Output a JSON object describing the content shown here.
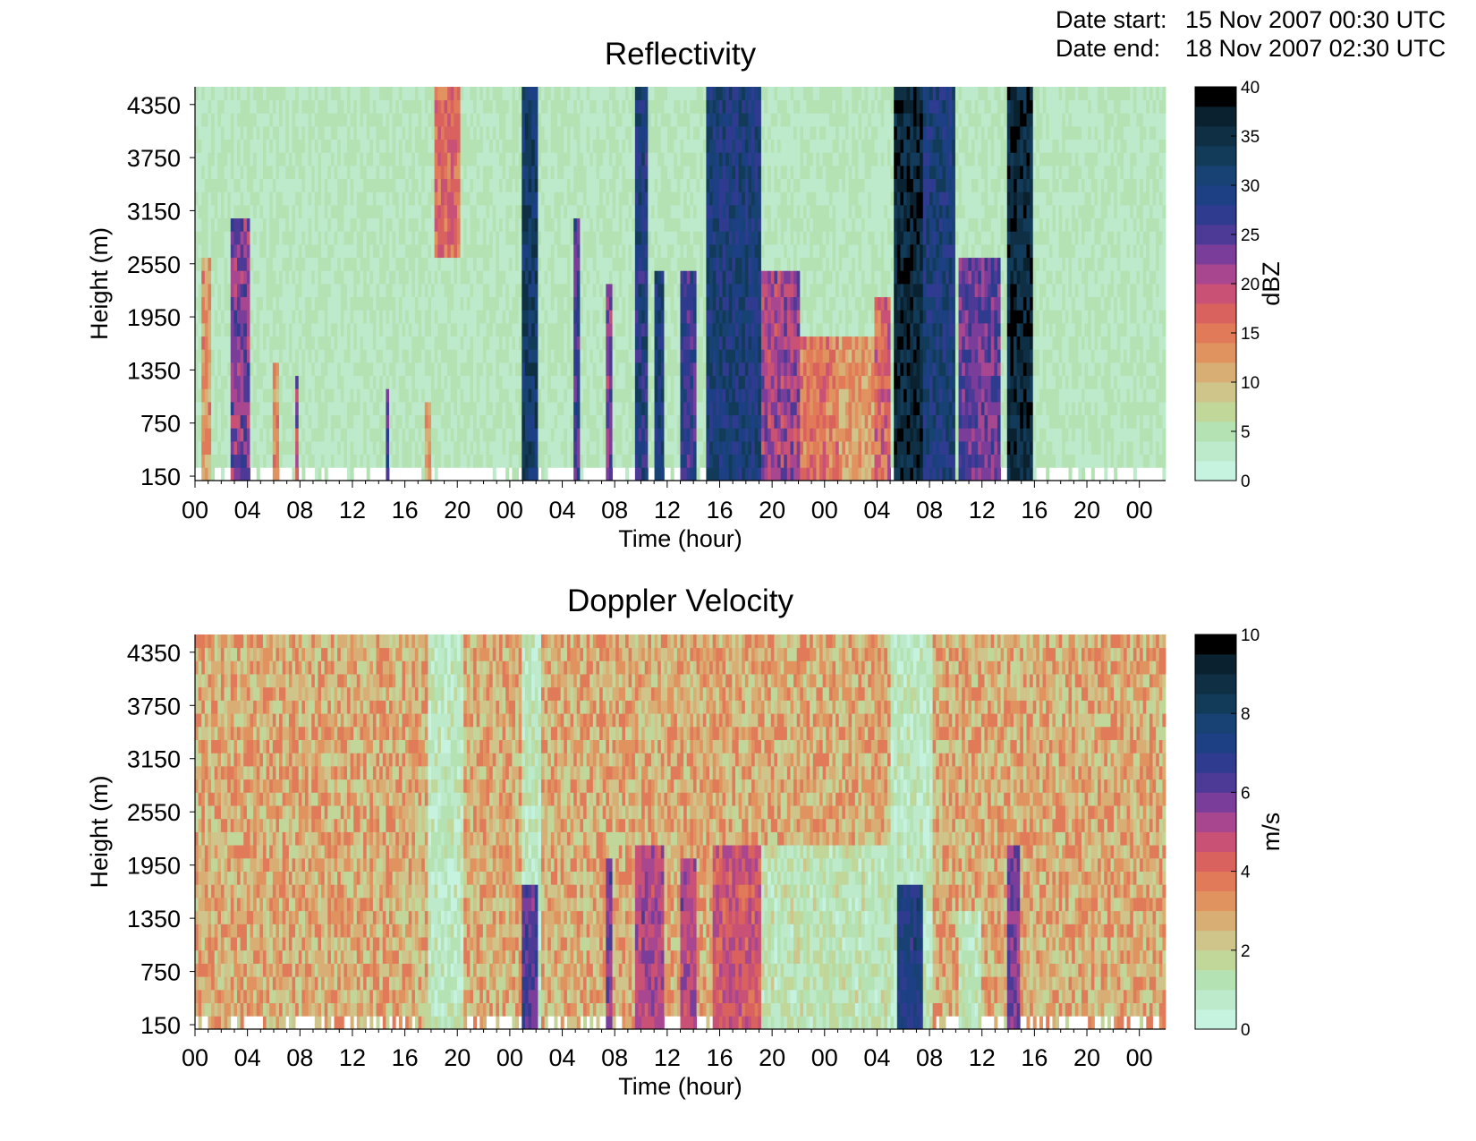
{
  "header": {
    "start_label": "Date start:",
    "start_value": "15 Nov 2007 00:30 UTC",
    "end_label": "Date end:",
    "end_value": "18 Nov 2007 02:30 UTC"
  },
  "palette": [
    "#ffffff",
    "#c6f2e0",
    "#bdeacb",
    "#b4e2b3",
    "#c1d79a",
    "#cfc48a",
    "#d9ae75",
    "#e0935f",
    "#e07a58",
    "#d9625f",
    "#c95176",
    "#a94690",
    "#7a3e9a",
    "#4d3a96",
    "#2e3b8f",
    "#1d3f84",
    "#174273",
    "#123b5a",
    "#0f2f44",
    "#0a2230",
    "#000000"
  ],
  "chart_data": [
    {
      "type": "heatmap",
      "title": "Reflectivity",
      "xlabel": "Time (hour)",
      "ylabel": "Height (m)",
      "colorbar_label": "dBZ",
      "x_tick_labels": [
        "00",
        "04",
        "08",
        "12",
        "16",
        "20",
        "00",
        "04",
        "08",
        "12",
        "16",
        "20",
        "00",
        "04",
        "08",
        "12",
        "16",
        "20",
        "00"
      ],
      "x_range_hours": [
        0,
        74
      ],
      "y_ticks": [
        150,
        750,
        1350,
        1950,
        2550,
        3150,
        3750,
        4350
      ],
      "y_range": [
        100,
        4550
      ],
      "colorbar_range": [
        0,
        40
      ],
      "colorbar_ticks": [
        0,
        5,
        10,
        15,
        20,
        25,
        30,
        35,
        40
      ],
      "background_level": 5,
      "events": [
        {
          "t0": 0.5,
          "t1": 1.2,
          "top": 2600,
          "level": 14
        },
        {
          "t0": 2.8,
          "t1": 4.3,
          "top": 3000,
          "level": 24
        },
        {
          "t0": 5.8,
          "t1": 6.4,
          "top": 1500,
          "level": 14
        },
        {
          "t0": 7.7,
          "t1": 8.0,
          "top": 1300,
          "level": 22
        },
        {
          "t0": 14.6,
          "t1": 14.8,
          "top": 1150,
          "level": 27
        },
        {
          "t0": 17.6,
          "t1": 18.0,
          "top": 1000,
          "level": 12
        },
        {
          "t0": 18.2,
          "t1": 20.2,
          "top": 4550,
          "bottom": 2600,
          "level": 17
        },
        {
          "t0": 25.0,
          "t1": 26.2,
          "top": 4550,
          "level": 33
        },
        {
          "t0": 28.8,
          "t1": 29.3,
          "top": 3100,
          "level": 27
        },
        {
          "t0": 31.3,
          "t1": 31.8,
          "top": 2300,
          "level": 24
        },
        {
          "t0": 33.6,
          "t1": 34.6,
          "top": 4550,
          "level": 30
        },
        {
          "t0": 35.0,
          "t1": 35.8,
          "top": 2500,
          "level": 31
        },
        {
          "t0": 37.0,
          "t1": 38.3,
          "top": 2500,
          "level": 28
        },
        {
          "t0": 39.0,
          "t1": 43.2,
          "top": 4550,
          "level": 31
        },
        {
          "t0": 43.2,
          "t1": 46.2,
          "top": 2400,
          "level": 22
        },
        {
          "t0": 46.2,
          "t1": 49.2,
          "top": 1800,
          "level": 16
        },
        {
          "t0": 49.2,
          "t1": 51.7,
          "top": 1800,
          "level": 13
        },
        {
          "t0": 51.7,
          "t1": 53.0,
          "top": 2200,
          "level": 18
        },
        {
          "t0": 53.2,
          "t1": 55.6,
          "top": 4550,
          "level": 37
        },
        {
          "t0": 55.6,
          "t1": 58.0,
          "top": 4550,
          "level": 31
        },
        {
          "t0": 58.3,
          "t1": 61.3,
          "top": 2600,
          "level": 25
        },
        {
          "t0": 62.0,
          "t1": 63.8,
          "top": 4550,
          "level": 37
        }
      ]
    },
    {
      "type": "heatmap",
      "title": "Doppler Velocity",
      "xlabel": "Time (hour)",
      "ylabel": "Height (m)",
      "colorbar_label": "m/s",
      "x_tick_labels": [
        "00",
        "04",
        "08",
        "12",
        "16",
        "20",
        "00",
        "04",
        "08",
        "12",
        "16",
        "20",
        "00",
        "04",
        "08",
        "12",
        "16",
        "20",
        "00"
      ],
      "x_range_hours": [
        0,
        74
      ],
      "y_ticks": [
        150,
        750,
        1350,
        1950,
        2550,
        3150,
        3750,
        4350
      ],
      "y_range": [
        100,
        4550
      ],
      "colorbar_range": [
        0,
        10
      ],
      "colorbar_ticks": [
        0,
        2,
        4,
        6,
        8,
        10
      ],
      "background_level": 3,
      "events": [
        {
          "t0": 17.8,
          "t1": 20.5,
          "top": 4550,
          "level": 1.2
        },
        {
          "t0": 24.8,
          "t1": 26.5,
          "top": 4550,
          "level": 1.3
        },
        {
          "t0": 25.0,
          "t1": 26.2,
          "top": 1700,
          "level": 6.5
        },
        {
          "t0": 31.3,
          "t1": 31.8,
          "top": 2000,
          "level": 6.0
        },
        {
          "t0": 33.6,
          "t1": 35.8,
          "top": 2200,
          "level": 5.5
        },
        {
          "t0": 37.0,
          "t1": 38.3,
          "top": 2000,
          "level": 5.5
        },
        {
          "t0": 39.5,
          "t1": 43.2,
          "top": 2200,
          "level": 4.8
        },
        {
          "t0": 43.2,
          "t1": 53.0,
          "top": 2200,
          "level": 1.5
        },
        {
          "t0": 53.0,
          "t1": 56.2,
          "top": 4550,
          "level": 1.2
        },
        {
          "t0": 53.5,
          "t1": 55.6,
          "top": 1700,
          "level": 7.5
        },
        {
          "t0": 58.3,
          "t1": 60.0,
          "top": 1500,
          "level": 1.5
        },
        {
          "t0": 62.0,
          "t1": 63.0,
          "top": 2200,
          "level": 6.0
        }
      ]
    }
  ]
}
